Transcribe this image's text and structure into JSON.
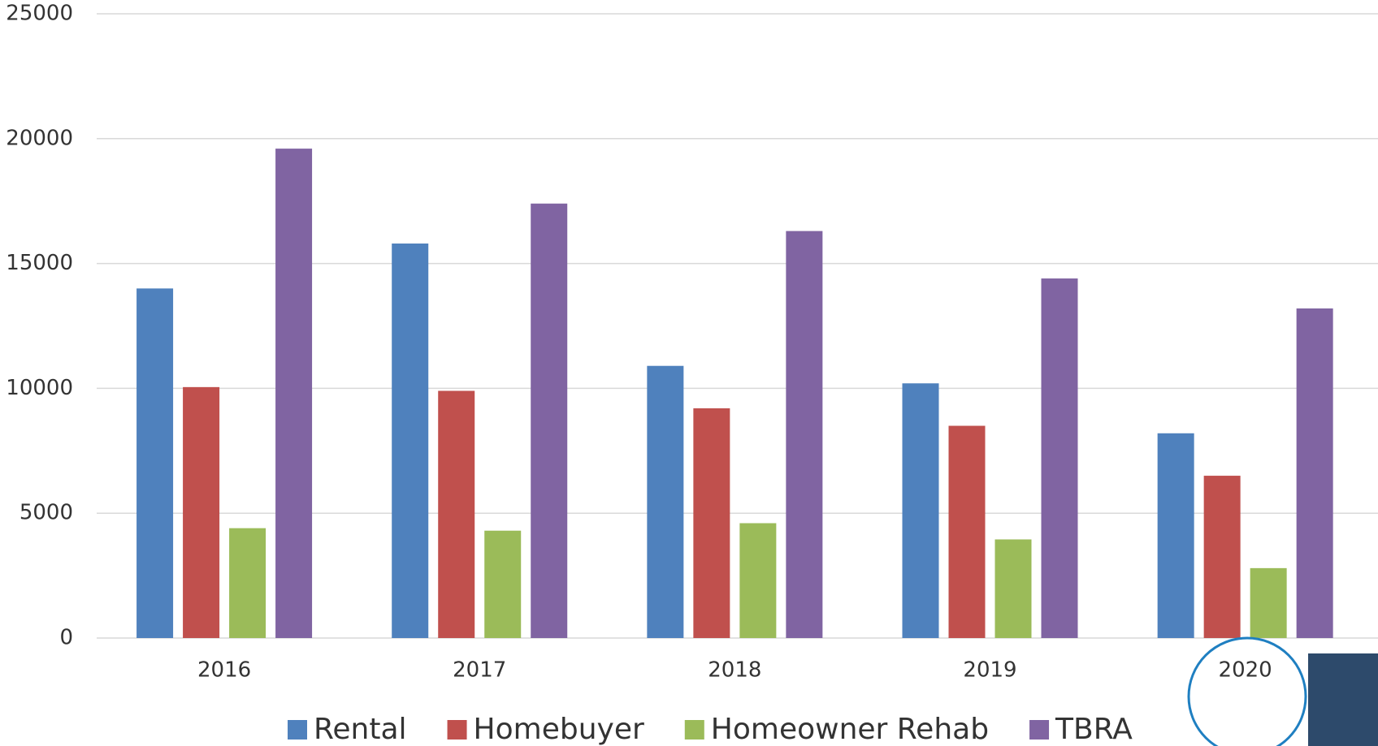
{
  "chart_data": {
    "type": "bar",
    "categories": [
      "2016",
      "2017",
      "2018",
      "2019",
      "2020"
    ],
    "series": [
      {
        "name": "Rental",
        "color": "#4f81bd",
        "values": [
          14000,
          15800,
          10900,
          10200,
          8200
        ]
      },
      {
        "name": "Homebuyer",
        "color": "#c0504d",
        "values": [
          10050,
          9900,
          9200,
          8500,
          6500
        ]
      },
      {
        "name": "Homeowner Rehab",
        "color": "#9bbb59",
        "values": [
          4400,
          4300,
          4600,
          3950,
          2800
        ]
      },
      {
        "name": "TBRA",
        "color": "#8064a2",
        "values": [
          19600,
          17400,
          16300,
          14400,
          13200
        ]
      }
    ],
    "ylim": [
      0,
      25000
    ],
    "yticks": [
      0,
      5000,
      10000,
      15000,
      20000,
      25000
    ],
    "grid": true
  }
}
